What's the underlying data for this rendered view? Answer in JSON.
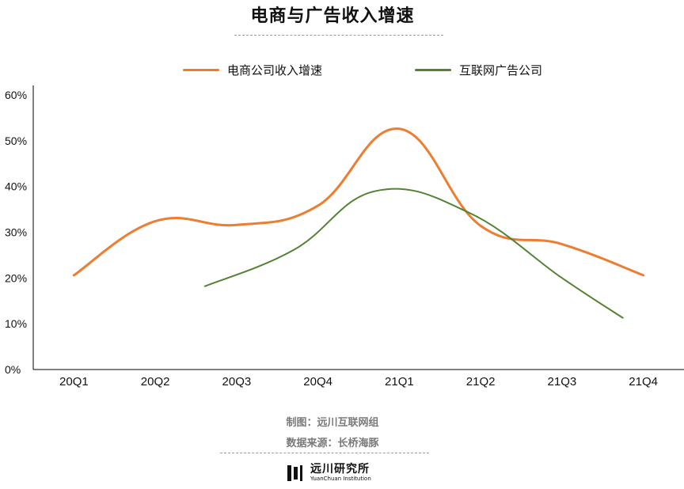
{
  "colors": {
    "series1": "#ed7d31",
    "series2": "#548235",
    "axis": "#000000"
  },
  "chart_data": {
    "type": "line",
    "title": "电商与广告收入增速",
    "categories": [
      "20Q1",
      "20Q2",
      "20Q3",
      "20Q4",
      "21Q1",
      "21Q2",
      "21Q3",
      "21Q4"
    ],
    "y_ticks": [
      "0%",
      "10%",
      "20%",
      "30%",
      "40%",
      "50%",
      "60%"
    ],
    "ylim": [
      0,
      60
    ],
    "grid": false,
    "legend_position": "top",
    "series": [
      {
        "name": "电商公司收入增速",
        "values": [
          20.6,
          32.4,
          31.6,
          35.8,
          52.6,
          31.4,
          27.4,
          20.6
        ]
      },
      {
        "name": "互联网广告公司",
        "values": [
          null,
          null,
          18.2,
          26.2,
          39.0,
          34.3,
          20.0,
          11.3
        ]
      }
    ]
  },
  "footer": {
    "maker": "制图：远川互联网组",
    "source": "数据来源：长桥海豚",
    "brand_cn": "远川研究所",
    "brand_en": "YuanChuan Institution"
  }
}
